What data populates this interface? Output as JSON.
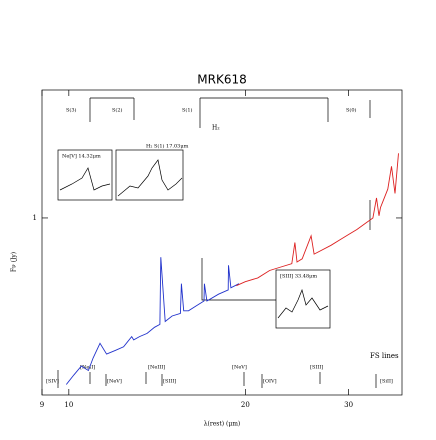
{
  "chart_data": {
    "type": "line",
    "title": "MRK618",
    "x_label": "λ(rest)  (μm)",
    "y_label": "Fν (Jy)",
    "xscale": "log",
    "yscale": "log",
    "xlim": [
      9,
      37
    ],
    "xticks": [
      9,
      10,
      20,
      30
    ],
    "ylim": [
      0.2,
      3.2
    ],
    "yticks": [
      1
    ],
    "series": [
      {
        "color": "#2233cc",
        "x": [
          9.9,
          10.2,
          10.5,
          10.8,
          11.0,
          11.3,
          11.6,
          12.0,
          12.4,
          12.8,
          12.9,
          13.2,
          13.6,
          14.0,
          14.3,
          14.35,
          14.6,
          15.0,
          15.5,
          15.56,
          15.7,
          16.0,
          16.5,
          17.0,
          17.03,
          17.2,
          18.0,
          18.7,
          18.72,
          18.9,
          19.5
        ],
        "values": [
          0.22,
          0.24,
          0.26,
          0.25,
          0.28,
          0.32,
          0.29,
          0.3,
          0.31,
          0.34,
          0.33,
          0.34,
          0.35,
          0.37,
          0.38,
          0.7,
          0.39,
          0.41,
          0.42,
          0.55,
          0.43,
          0.43,
          0.45,
          0.47,
          0.55,
          0.47,
          0.5,
          0.52,
          0.65,
          0.53,
          0.55
        ]
      },
      {
        "color": "#dd2222",
        "x": [
          19.3,
          20,
          21,
          22,
          23,
          24,
          24.3,
          24.5,
          25,
          25.89,
          26.2,
          26.5,
          28,
          29,
          30,
          31,
          32,
          33,
          33.48,
          33.8,
          34,
          35,
          35.5,
          36,
          36.5
        ],
        "values": [
          0.54,
          0.56,
          0.58,
          0.62,
          0.64,
          0.66,
          0.8,
          0.67,
          0.69,
          0.85,
          0.72,
          0.73,
          0.78,
          0.82,
          0.86,
          0.9,
          0.95,
          1.0,
          1.2,
          1.02,
          1.1,
          1.3,
          1.6,
          1.25,
          1.8
        ]
      }
    ],
    "annotations": [
      "S(3)",
      "S(2)",
      "S(1)",
      "S(0)",
      "H₂",
      "Ne[V] 14.32μm",
      "H₂ S(1) 17.03μm",
      "[SIII] 33.48μm",
      "FS lines",
      "[SIV]",
      "[NeII]",
      "[NeV]",
      "[NeIII]",
      "[SIII]",
      "[NeV]",
      "[OIV]",
      "[SIII]",
      "[SiII]"
    ]
  }
}
